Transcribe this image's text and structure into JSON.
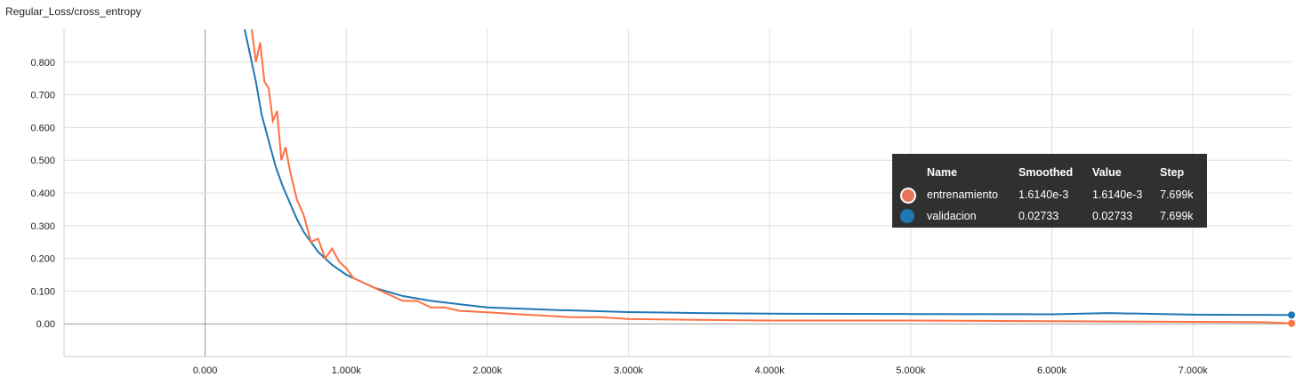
{
  "chart_title": "Regular_Loss/cross_entropy",
  "chart_data": {
    "type": "line",
    "x_ticks": [
      "0.000",
      "1.000k",
      "2.000k",
      "3.000k",
      "4.000k",
      "5.000k",
      "6.000k",
      "7.000k"
    ],
    "x_tick_values": [
      0,
      1000,
      2000,
      3000,
      4000,
      5000,
      6000,
      7000
    ],
    "y_ticks": [
      "0.00",
      "0.100",
      "0.200",
      "0.300",
      "0.400",
      "0.500",
      "0.600",
      "0.700",
      "0.800"
    ],
    "y_tick_values": [
      0,
      0.1,
      0.2,
      0.3,
      0.4,
      0.5,
      0.6,
      0.7,
      0.8
    ],
    "xlim": [
      -1000,
      7699
    ],
    "ylim": [
      -0.1,
      0.9
    ],
    "grid": true,
    "series": [
      {
        "name": "entrenamiento",
        "color": "#ff7043",
        "x": [
          330,
          360,
          390,
          420,
          450,
          480,
          510,
          540,
          570,
          600,
          650,
          700,
          750,
          800,
          850,
          900,
          950,
          1000,
          1050,
          1100,
          1200,
          1300,
          1400,
          1500,
          1600,
          1700,
          1800,
          2000,
          2200,
          2400,
          2600,
          2800,
          3000,
          3500,
          4000,
          4500,
          5000,
          5500,
          6000,
          6500,
          7000,
          7500,
          7699
        ],
        "y": [
          0.9,
          0.8,
          0.86,
          0.74,
          0.72,
          0.62,
          0.65,
          0.5,
          0.54,
          0.47,
          0.38,
          0.33,
          0.25,
          0.26,
          0.2,
          0.23,
          0.19,
          0.17,
          0.14,
          0.13,
          0.11,
          0.09,
          0.07,
          0.07,
          0.05,
          0.05,
          0.04,
          0.035,
          0.03,
          0.025,
          0.02,
          0.02,
          0.015,
          0.012,
          0.01,
          0.01,
          0.01,
          0.009,
          0.008,
          0.007,
          0.006,
          0.005,
          0.0016
        ]
      },
      {
        "name": "validacion",
        "color": "#1f77b4",
        "x": [
          280,
          320,
          360,
          400,
          450,
          500,
          550,
          600,
          650,
          700,
          750,
          800,
          900,
          1000,
          1100,
          1200,
          1400,
          1600,
          1800,
          2000,
          2500,
          3000,
          3500,
          4000,
          5000,
          6000,
          6400,
          7000,
          7699
        ],
        "y": [
          0.9,
          0.82,
          0.74,
          0.64,
          0.56,
          0.48,
          0.42,
          0.37,
          0.32,
          0.28,
          0.25,
          0.22,
          0.18,
          0.15,
          0.13,
          0.11,
          0.085,
          0.07,
          0.06,
          0.05,
          0.042,
          0.036,
          0.033,
          0.031,
          0.03,
          0.029,
          0.033,
          0.028,
          0.027
        ]
      }
    ]
  },
  "tooltip": {
    "headers": [
      "Name",
      "Smoothed",
      "Value",
      "Step"
    ],
    "rows": [
      {
        "color": "#e8735a",
        "name": "entrenamiento",
        "smoothed": "1.6140e-3",
        "value": "1.6140e-3",
        "step": "7.699k"
      },
      {
        "color": "#1f77b4",
        "name": "validacion",
        "smoothed": "0.02733",
        "value": "0.02733",
        "step": "7.699k"
      }
    ]
  }
}
